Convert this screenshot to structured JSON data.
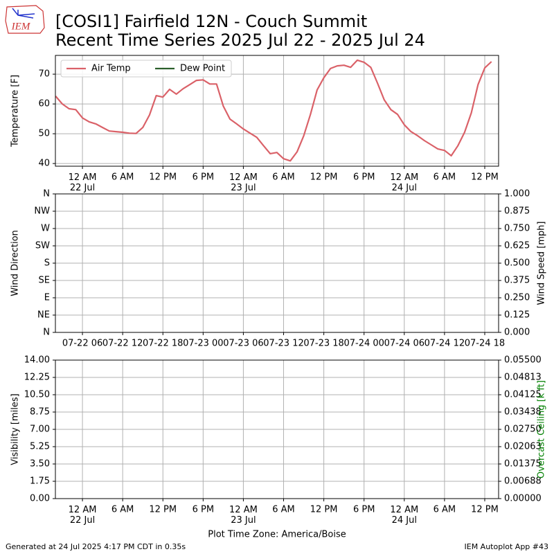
{
  "header": {
    "logo": "IEM",
    "title": "[COSI1] Fairfield 12N - Couch Summit",
    "subtitle": "Recent Time Series 2025 Jul 22 - 2025 Jul 24"
  },
  "footer": {
    "generated": "Generated at 24 Jul 2025 4:17 PM CDT in 0.35s",
    "app": "IEM Autoplot App #43"
  },
  "chart_data": [
    {
      "type": "line",
      "ylabel": "Temperature [F]",
      "legend": "upper left",
      "grid": true,
      "xlim": [
        "07-21 19:58",
        "07-24 14:04"
      ],
      "ylim": [
        39.1,
        76.3
      ],
      "yticks": [
        40,
        50,
        60,
        70
      ],
      "xticks": [
        {
          "value": "07-22 00:00",
          "label": "12 AM\n22 Jul"
        },
        {
          "value": "07-22 06:00",
          "label": "6 AM"
        },
        {
          "value": "07-22 12:00",
          "label": "12 PM"
        },
        {
          "value": "07-22 18:00",
          "label": "6 PM"
        },
        {
          "value": "07-23 00:00",
          "label": "12 AM\n23 Jul"
        },
        {
          "value": "07-23 06:00",
          "label": "6 AM"
        },
        {
          "value": "07-23 12:00",
          "label": "12 PM"
        },
        {
          "value": "07-23 18:00",
          "label": "6 PM"
        },
        {
          "value": "07-24 00:00",
          "label": "12 AM\n24 Jul"
        },
        {
          "value": "07-24 06:00",
          "label": "6 AM"
        },
        {
          "value": "07-24 12:00",
          "label": "12 PM"
        }
      ],
      "x": [
        "07-21 20:00",
        "07-21 21:00",
        "07-21 22:00",
        "07-21 23:00",
        "07-22 00:00",
        "07-22 01:00",
        "07-22 02:00",
        "07-22 03:00",
        "07-22 04:00",
        "07-22 05:00",
        "07-22 06:00",
        "07-22 07:00",
        "07-22 08:00",
        "07-22 09:00",
        "07-22 10:00",
        "07-22 11:00",
        "07-22 12:00",
        "07-22 13:00",
        "07-22 14:00",
        "07-22 15:00",
        "07-22 16:00",
        "07-22 17:00",
        "07-22 18:00",
        "07-22 19:00",
        "07-22 20:00",
        "07-22 21:00",
        "07-22 22:00",
        "07-22 23:00",
        "07-23 00:00",
        "07-23 01:00",
        "07-23 02:00",
        "07-23 03:00",
        "07-23 04:00",
        "07-23 05:00",
        "07-23 06:00",
        "07-23 07:00",
        "07-23 08:00",
        "07-23 09:00",
        "07-23 10:00",
        "07-23 11:00",
        "07-23 12:00",
        "07-23 13:00",
        "07-23 14:00",
        "07-23 15:00",
        "07-23 16:00",
        "07-23 17:00",
        "07-23 18:00",
        "07-23 19:00",
        "07-23 20:00",
        "07-23 21:00",
        "07-23 22:00",
        "07-23 23:00",
        "07-24 00:00",
        "07-24 01:00",
        "07-24 02:00",
        "07-24 03:00",
        "07-24 04:00",
        "07-24 05:00",
        "07-24 06:00",
        "07-24 07:00",
        "07-24 08:00",
        "07-24 09:00",
        "07-24 10:00",
        "07-24 11:00",
        "07-24 12:00",
        "07-24 13:00"
      ],
      "series": [
        {
          "name": "Air Temp",
          "color": "#da6168",
          "values": [
            62.6,
            60.0,
            58.4,
            58.1,
            55.3,
            54.0,
            53.3,
            52.1,
            50.9,
            50.7,
            50.5,
            50.2,
            50.1,
            52.1,
            56.3,
            62.8,
            62.3,
            64.9,
            63.3,
            65.1,
            66.5,
            67.9,
            68.1,
            66.7,
            66.7,
            59.3,
            54.9,
            53.3,
            51.6,
            50.2,
            48.8,
            46.0,
            43.3,
            43.7,
            41.6,
            40.9,
            43.9,
            49.3,
            56.5,
            64.7,
            68.8,
            71.9,
            72.8,
            73.0,
            72.3,
            74.7,
            74.0,
            72.3,
            67.0,
            61.4,
            58.1,
            56.5,
            53.0,
            50.7,
            49.3,
            47.7,
            46.3,
            44.9,
            44.4,
            42.6,
            46.0,
            50.5,
            57.0,
            66.5,
            72.1,
            74.2
          ]
        },
        {
          "name": "Dew Point",
          "color": "#2b5f2b",
          "values": [
            null,
            null,
            null,
            null,
            null,
            null,
            null,
            null,
            null,
            null,
            null,
            null,
            null,
            null,
            null,
            null,
            null,
            null,
            null,
            null,
            null,
            null,
            null,
            null,
            null,
            null,
            null,
            null,
            null,
            null,
            null,
            null,
            null,
            null,
            null,
            null,
            null,
            null,
            null,
            null,
            null,
            null,
            null,
            null,
            null,
            null,
            null,
            null,
            null,
            null,
            null,
            null,
            null,
            null,
            null,
            null,
            null,
            null,
            null,
            null,
            null,
            null,
            null,
            null,
            null,
            null
          ]
        }
      ]
    },
    {
      "type": "line",
      "ylabel": "Wind Direction",
      "y2label": "Wind Speed [mph]",
      "grid": true,
      "xlim": [
        "07-21 19:58",
        "07-24 14:04"
      ],
      "xticks": [
        {
          "value": "07-22 00:00",
          "label": "07-22 06"
        },
        {
          "value": "07-22 06:00",
          "label": "07-22 12"
        },
        {
          "value": "07-22 12:00",
          "label": "07-22 18"
        },
        {
          "value": "07-22 18:00",
          "label": "07-23 00"
        },
        {
          "value": "07-23 00:00",
          "label": "07-23 06"
        },
        {
          "value": "07-23 06:00",
          "label": "07-23 12"
        },
        {
          "value": "07-23 12:00",
          "label": "07-23 18"
        },
        {
          "value": "07-23 18:00",
          "label": "07-24 00"
        },
        {
          "value": "07-24 00:00",
          "label": "07-24 06"
        },
        {
          "value": "07-24 06:00",
          "label": "07-24 12"
        },
        {
          "value": "07-24 12:00",
          "label": "07-24 18"
        }
      ],
      "ylim": [
        0,
        360
      ],
      "yticks": [
        {
          "value": 0,
          "label": "N"
        },
        {
          "value": 45,
          "label": "NE"
        },
        {
          "value": 90,
          "label": "E"
        },
        {
          "value": 135,
          "label": "SE"
        },
        {
          "value": 180,
          "label": "S"
        },
        {
          "value": 225,
          "label": "SW"
        },
        {
          "value": 270,
          "label": "W"
        },
        {
          "value": 315,
          "label": "NW"
        },
        {
          "value": 360,
          "label": "N"
        }
      ],
      "y2lim": [
        0,
        1
      ],
      "y2ticks": [
        {
          "value": 0,
          "label": "0.000"
        },
        0.125,
        {
          "value": 0.25,
          "label": "0.250"
        },
        0.375,
        {
          "value": 0.5,
          "label": "0.500"
        },
        0.625,
        {
          "value": 0.75,
          "label": "0.750"
        },
        0.875,
        {
          "value": 1,
          "label": "1.000"
        }
      ],
      "x": [],
      "series": []
    },
    {
      "type": "line",
      "ylabel": "Visibility [miles]",
      "y2label": "Overcast Ceiling [k ft]",
      "y2label_color": "#008000",
      "xlabel": "Plot Time Zone: America/Boise",
      "grid": true,
      "xlim": [
        "07-21 19:58",
        "07-24 14:04"
      ],
      "xticks": [
        {
          "value": "07-22 00:00",
          "label": "12 AM\n22 Jul"
        },
        {
          "value": "07-22 06:00",
          "label": "6 AM"
        },
        {
          "value": "07-22 12:00",
          "label": "12 PM"
        },
        {
          "value": "07-22 18:00",
          "label": "6 PM"
        },
        {
          "value": "07-23 00:00",
          "label": "12 AM\n23 Jul"
        },
        {
          "value": "07-23 06:00",
          "label": "6 AM"
        },
        {
          "value": "07-23 12:00",
          "label": "12 PM"
        },
        {
          "value": "07-23 18:00",
          "label": "6 PM"
        },
        {
          "value": "07-24 00:00",
          "label": "12 AM\n24 Jul"
        },
        {
          "value": "07-24 06:00",
          "label": "6 AM"
        },
        {
          "value": "07-24 12:00",
          "label": "12 PM"
        }
      ],
      "ylim": [
        0,
        14
      ],
      "yticks": [
        {
          "value": 0,
          "label": "0.00"
        },
        1.75,
        {
          "value": 3.5,
          "label": "3.50"
        },
        5.25,
        {
          "value": 7,
          "label": "7.00"
        },
        8.75,
        {
          "value": 10.5,
          "label": "10.50"
        },
        12.25,
        {
          "value": 14,
          "label": "14.00"
        }
      ],
      "y2lim": [
        0,
        0.055
      ],
      "y2ticks": [
        {
          "value": 0,
          "label": "0.00000"
        },
        {
          "value": 0.006875,
          "label": "0.00688"
        },
        0.01375,
        {
          "value": 0.020625,
          "label": "0.02063"
        },
        {
          "value": 0.0275,
          "label": "0.02750"
        },
        {
          "value": 0.034375,
          "label": "0.03438"
        },
        0.04125,
        {
          "value": 0.048125,
          "label": "0.04813"
        },
        {
          "value": 0.055,
          "label": "0.05500"
        }
      ],
      "x": [],
      "series": []
    }
  ]
}
